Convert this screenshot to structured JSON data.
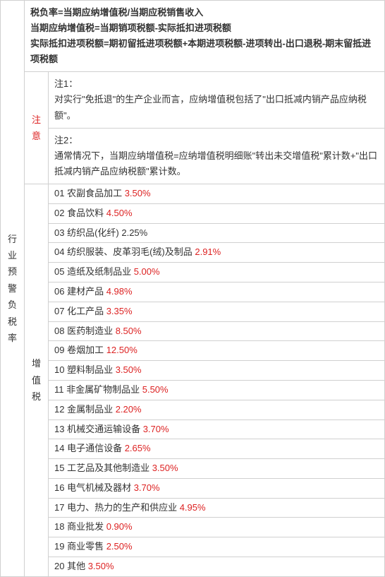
{
  "leftHeader": "行业预警负税率",
  "noticeLabel": "注意",
  "vatLabel": "增值税",
  "formulas": [
    "税负率=当期应纳增值税/当期应税销售收入",
    "当期应纳增值税=当期销项税额-实际抵扣进项税额",
    "实际抵扣进项税额=期初留抵进项税额+本期进项税额-进项转出-出口退税-期末留抵进项税额"
  ],
  "note1Label": "注1：",
  "note1Text": "对实行\"免抵退\"的生产企业而言，应纳增值税包括了\"出口抵减内销产品应纳税额\"。",
  "note2Label": "注2：",
  "note2Text": "通常情况下，当期应纳增值税=应纳增值税明细账\"转出未交增值税\"累计数+\"出口抵减内销产品应纳税额\"累计数。",
  "rows": [
    {
      "num": "01",
      "name": "农副食品加工",
      "rate": "3.50%",
      "red": true
    },
    {
      "num": "02",
      "name": "食品饮料",
      "rate": "4.50%",
      "red": true
    },
    {
      "num": "03",
      "name": "纺织品(化纤)",
      "rate": "2.25%",
      "red": false
    },
    {
      "num": "04",
      "name": "纺织服装、皮革羽毛(绒)及制品",
      "rate": "2.91%",
      "red": true
    },
    {
      "num": "05",
      "name": "造纸及纸制品业",
      "rate": "5.00%",
      "red": true
    },
    {
      "num": "06",
      "name": "建材产品",
      "rate": "4.98%",
      "red": true
    },
    {
      "num": "07",
      "name": "化工产品",
      "rate": "3.35%",
      "red": true
    },
    {
      "num": "08",
      "name": "医药制造业",
      "rate": "8.50%",
      "red": true
    },
    {
      "num": "09",
      "name": "卷烟加工",
      "rate": "12.50%",
      "red": true
    },
    {
      "num": "10",
      "name": "塑料制品业",
      "rate": "3.50%",
      "red": true
    },
    {
      "num": "11",
      "name": "非金属矿物制品业",
      "rate": "5.50%",
      "red": true
    },
    {
      "num": "12",
      "name": "金属制品业",
      "rate": "2.20%",
      "red": true
    },
    {
      "num": "13",
      "name": "机械交通运输设备",
      "rate": "3.70%",
      "red": true
    },
    {
      "num": "14",
      "name": "电子通信设备",
      "rate": "2.65%",
      "red": true
    },
    {
      "num": "15",
      "name": "工艺品及其他制造业",
      "rate": "3.50%",
      "red": true
    },
    {
      "num": "16",
      "name": "电气机械及器材",
      "rate": "3.70%",
      "red": true
    },
    {
      "num": "17",
      "name": "电力、热力的生产和供应业",
      "rate": "4.95%",
      "red": true
    },
    {
      "num": "18",
      "name": "商业批发",
      "rate": "0.90%",
      "red": true
    },
    {
      "num": "19",
      "name": "商业零售",
      "rate": "2.50%",
      "red": true
    },
    {
      "num": "20",
      "name": "其他",
      "rate": "3.50%",
      "red": true
    }
  ]
}
